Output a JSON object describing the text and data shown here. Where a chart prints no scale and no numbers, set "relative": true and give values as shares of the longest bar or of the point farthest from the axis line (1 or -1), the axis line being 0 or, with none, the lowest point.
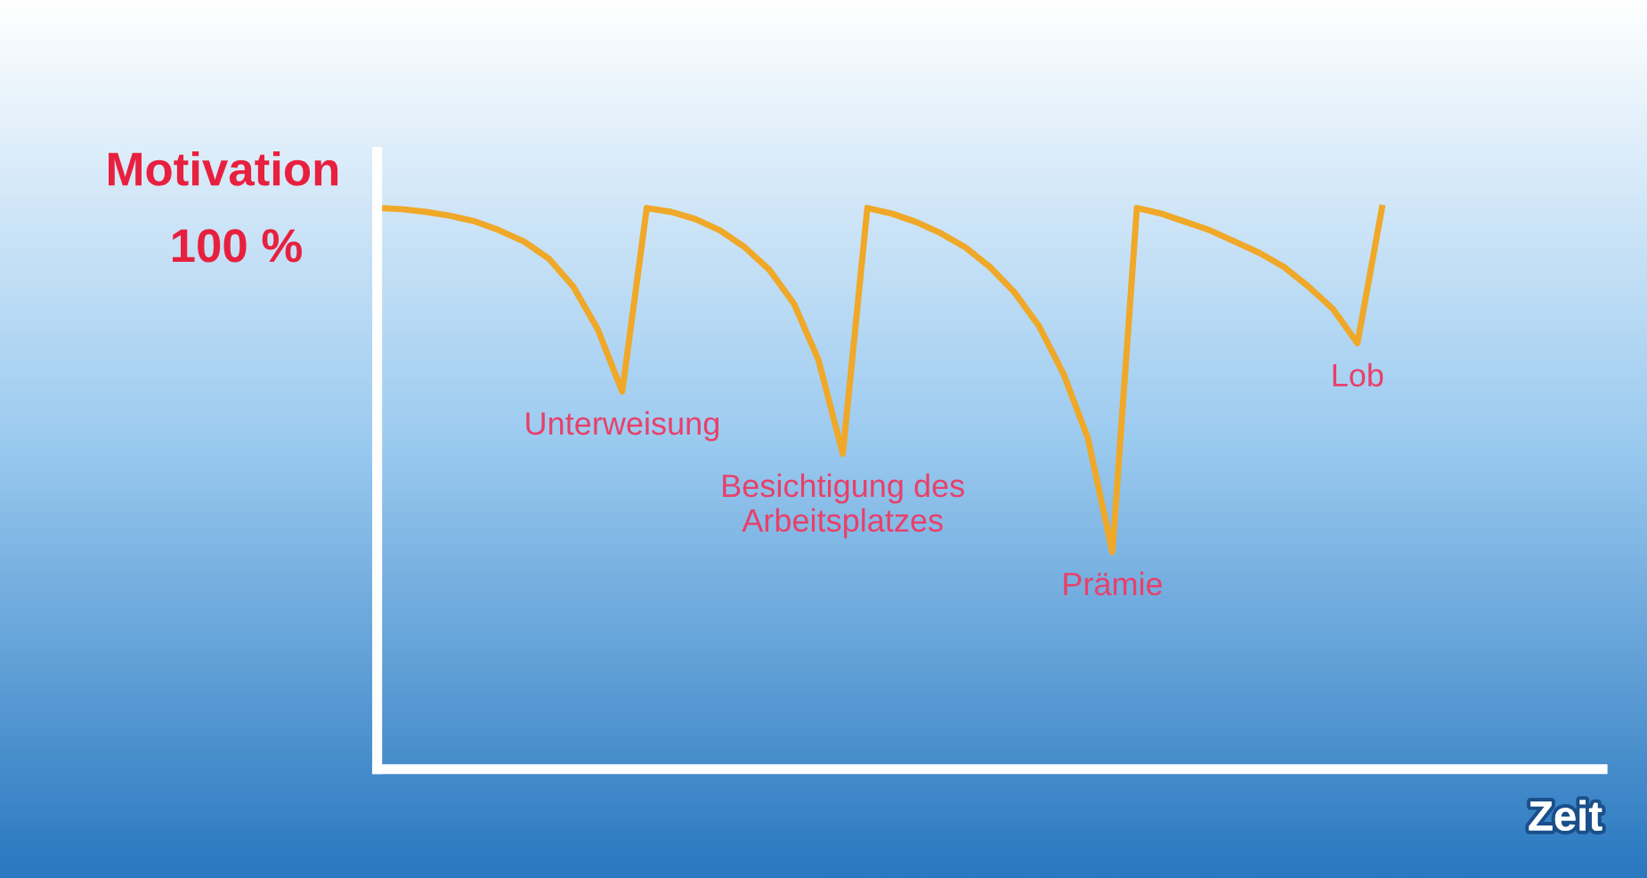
{
  "chart_data": {
    "type": "line",
    "relative": true,
    "ylabel": "Motivation",
    "xlabel": "Zeit",
    "categories": [
      null,
      null,
      null,
      null,
      null,
      null,
      null,
      null,
      null,
      null,
      null,
      null,
      null,
      null,
      null,
      null,
      null,
      null,
      null,
      null,
      null,
      null,
      null,
      null,
      null,
      null,
      null,
      null,
      null,
      null,
      null,
      null,
      null,
      null,
      null,
      null,
      null,
      null,
      null,
      null,
      null,
      null,
      null,
      null,
      null,
      null,
      null,
      null,
      null,
      null,
      null
    ],
    "series": [
      {
        "color": "#f0a828",
        "values": [
          1.0,
          0.998,
          0.993,
          0.986,
          0.976,
          0.96,
          0.94,
          0.91,
          0.86,
          0.784,
          0.673,
          1.0,
          0.993,
          0.98,
          0.96,
          0.93,
          0.89,
          0.83,
          0.73,
          0.562,
          1.0,
          0.99,
          0.975,
          0.955,
          0.93,
          0.895,
          0.85,
          0.79,
          0.705,
          0.59,
          0.387,
          1.0,
          0.99,
          0.975,
          0.96,
          0.94,
          0.92,
          0.895,
          0.86,
          0.82,
          0.759,
          1.0,
          null,
          null,
          null,
          null,
          null,
          null,
          null,
          null,
          null
        ]
      }
    ],
    "annotations": [
      "100 %",
      "Unterweisung",
      "Besichtigung des\nArbeitsplatzes",
      "Prämie",
      "Lob"
    ],
    "grid": false,
    "legend": false,
    "marker": "none",
    "line_style": "solid"
  }
}
